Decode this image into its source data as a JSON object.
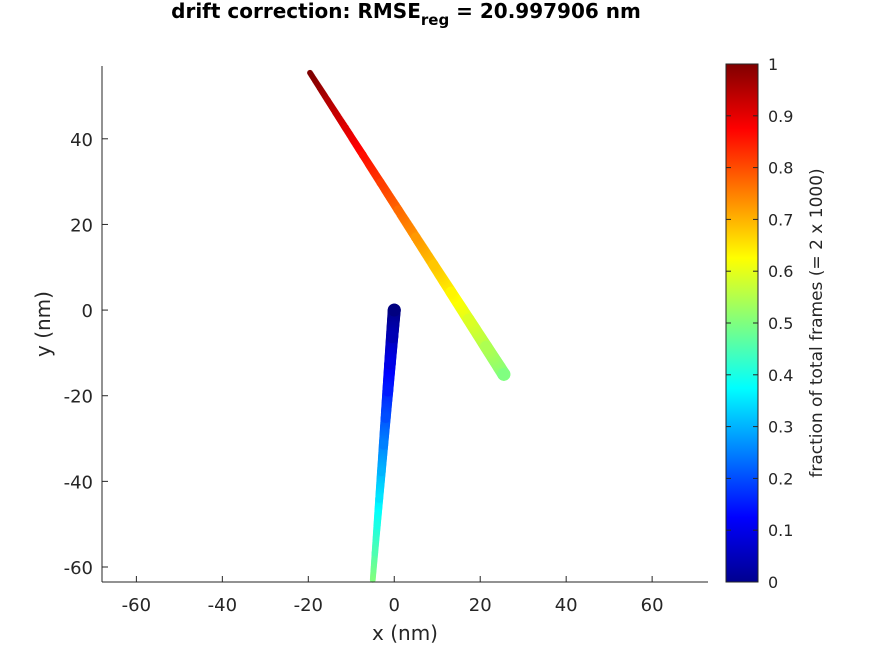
{
  "chart_data": {
    "type": "scatter",
    "title": {
      "prefix": "drift correction: RMSE",
      "subscript": "reg",
      "suffix": " = 20.997906 nm"
    },
    "xlabel": "x (nm)",
    "ylabel": "y (nm)",
    "xlim": [
      -68,
      73
    ],
    "ylim": [
      -63.5,
      57
    ],
    "xticks": [
      -60,
      -40,
      -20,
      0,
      20,
      40,
      60
    ],
    "yticks": [
      -60,
      -40,
      -20,
      0,
      20,
      40
    ],
    "grid": false,
    "colormap": "jet",
    "colorbar": {
      "label": "fraction of total frames (= 2 x 1000)",
      "range": [
        0,
        1
      ],
      "ticks": [
        0,
        0.1,
        0.2,
        0.3,
        0.4,
        0.5,
        0.6,
        0.7,
        0.8,
        0.9,
        1
      ]
    },
    "series": [
      {
        "x": [
          0,
          -0.5,
          -1,
          -1.5,
          -2,
          -2.5,
          -3,
          -3.5,
          -4,
          -4.5,
          -5
        ],
        "y": [
          0,
          -6.3,
          -12.6,
          -18.9,
          -25.2,
          -31.5,
          -37.8,
          -44.1,
          -50.4,
          -56.7,
          -63
        ],
        "c": [
          0,
          0.05,
          0.1,
          0.15,
          0.2,
          0.25,
          0.3,
          0.35,
          0.4,
          0.45,
          0.5
        ]
      },
      {
        "x": [
          25.5,
          21.4,
          17.3,
          13.2,
          9.1,
          5.0,
          0.9,
          -3.2,
          -7.3,
          -11.4,
          -15.5,
          -19.6
        ],
        "y": [
          -15,
          -8.6,
          -2.2,
          4.2,
          10.6,
          17.0,
          23.4,
          29.8,
          36.2,
          42.6,
          49.0,
          55.4
        ],
        "c": [
          0.5,
          0.545,
          0.59,
          0.635,
          0.68,
          0.725,
          0.77,
          0.815,
          0.86,
          0.905,
          0.95,
          1.0
        ]
      }
    ]
  }
}
